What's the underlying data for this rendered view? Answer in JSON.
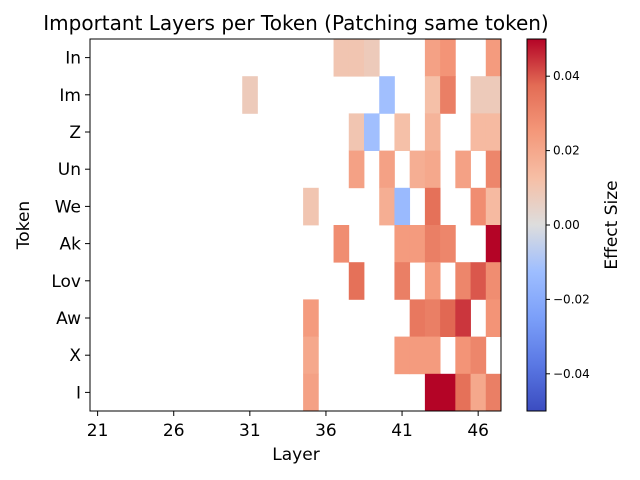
{
  "chart_data": {
    "type": "heatmap",
    "title": "Important Layers per Token (Patching same token)",
    "xlabel": "Layer",
    "ylabel": "Token",
    "x_ticks": [
      "21",
      "26",
      "31",
      "36",
      "41",
      "46"
    ],
    "x_start": 21,
    "x_end": 47,
    "rows": [
      "In",
      "Im",
      "Z",
      "Un",
      "We",
      "Ak",
      "Lov",
      "Aw",
      "X",
      "I"
    ],
    "colorbar": {
      "label": "Effect Size",
      "vmin": -0.05,
      "vmax": 0.05,
      "ticks": [
        "0.04",
        "0.02",
        "0.00",
        "−0.02",
        "−0.04"
      ],
      "tick_values": [
        0.04,
        0.02,
        0.0,
        -0.02,
        -0.04
      ]
    },
    "cells": [
      {
        "row": "In",
        "values": {
          "37": 0.01,
          "38": 0.01,
          "39": 0.008,
          "43": 0.022,
          "44": 0.026,
          "47": 0.024
        }
      },
      {
        "row": "Im",
        "values": {
          "31": 0.008,
          "40": -0.012,
          "43": 0.012,
          "44": 0.032,
          "46": 0.008,
          "47": 0.008
        }
      },
      {
        "row": "Z",
        "values": {
          "38": 0.01,
          "39": -0.012,
          "41": 0.012,
          "43": 0.016,
          "46": 0.014,
          "47": 0.014
        }
      },
      {
        "row": "Un",
        "values": {
          "38": 0.022,
          "40": 0.022,
          "42": 0.018,
          "43": 0.02,
          "45": 0.022,
          "47": 0.03
        }
      },
      {
        "row": "We",
        "values": {
          "35": 0.01,
          "40": 0.018,
          "41": -0.014,
          "43": 0.036,
          "46": 0.028,
          "47": 0.014
        }
      },
      {
        "row": "Ak",
        "values": {
          "37": 0.028,
          "41": 0.024,
          "42": 0.024,
          "43": 0.032,
          "44": 0.03,
          "47": 0.05
        }
      },
      {
        "row": "Lov",
        "values": {
          "38": 0.036,
          "41": 0.032,
          "43": 0.024,
          "45": 0.03,
          "46": 0.04,
          "47": 0.028
        }
      },
      {
        "row": "Aw",
        "values": {
          "35": 0.024,
          "42": 0.034,
          "43": 0.032,
          "44": 0.038,
          "45": 0.044,
          "47": 0.026
        }
      },
      {
        "row": "X",
        "values": {
          "35": 0.02,
          "41": 0.024,
          "42": 0.024,
          "43": 0.024,
          "45": 0.026,
          "46": 0.03
        }
      },
      {
        "row": "I",
        "values": {
          "35": 0.022,
          "43": 0.05,
          "44": 0.05,
          "45": 0.036,
          "46": 0.02,
          "47": 0.032
        }
      }
    ]
  }
}
